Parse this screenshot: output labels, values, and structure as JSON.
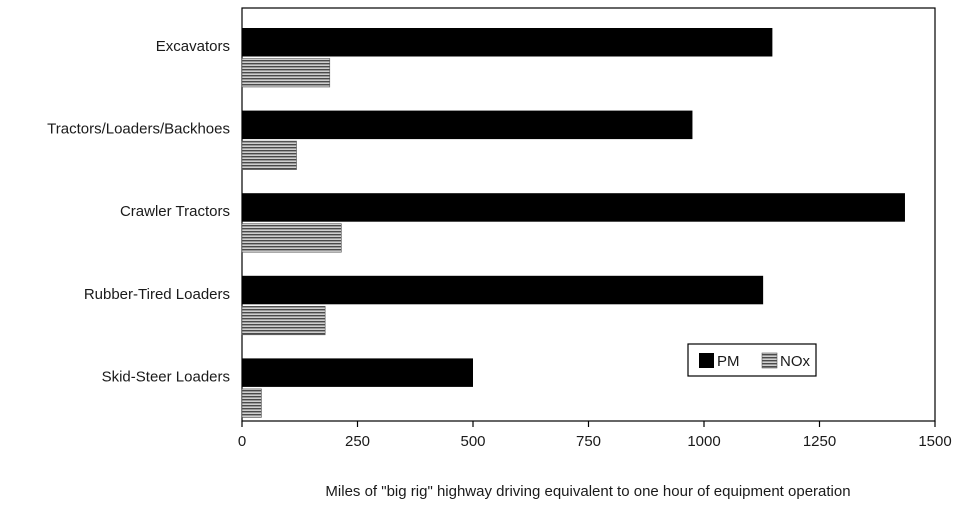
{
  "chart_data": {
    "type": "bar",
    "orientation": "horizontal",
    "categories": [
      "Excavators",
      "Tractors/Loaders/Backhoes",
      "Crawler Tractors",
      "Rubber-Tired Loaders",
      "Skid-Steer Loaders"
    ],
    "series": [
      {
        "name": "PM",
        "values": [
          1148,
          975,
          1435,
          1128,
          500
        ],
        "color": "#000000",
        "pattern": "solid"
      },
      {
        "name": "NOx",
        "values": [
          190,
          118,
          215,
          180,
          42
        ],
        "color": "#7a7a7a",
        "pattern": "horizontal-hatch"
      }
    ],
    "xlabel": "Miles of \"big rig\" highway driving equivalent to one hour of equipment operation",
    "ylabel": "",
    "xlim": [
      0,
      1500
    ],
    "xticks": [
      0,
      250,
      500,
      750,
      1000,
      1250,
      1500
    ],
    "xtick_labels": [
      "0",
      "250",
      "500",
      "750",
      "1000",
      "1250",
      "1500"
    ],
    "grid": false,
    "legend_position": "lower-right"
  }
}
